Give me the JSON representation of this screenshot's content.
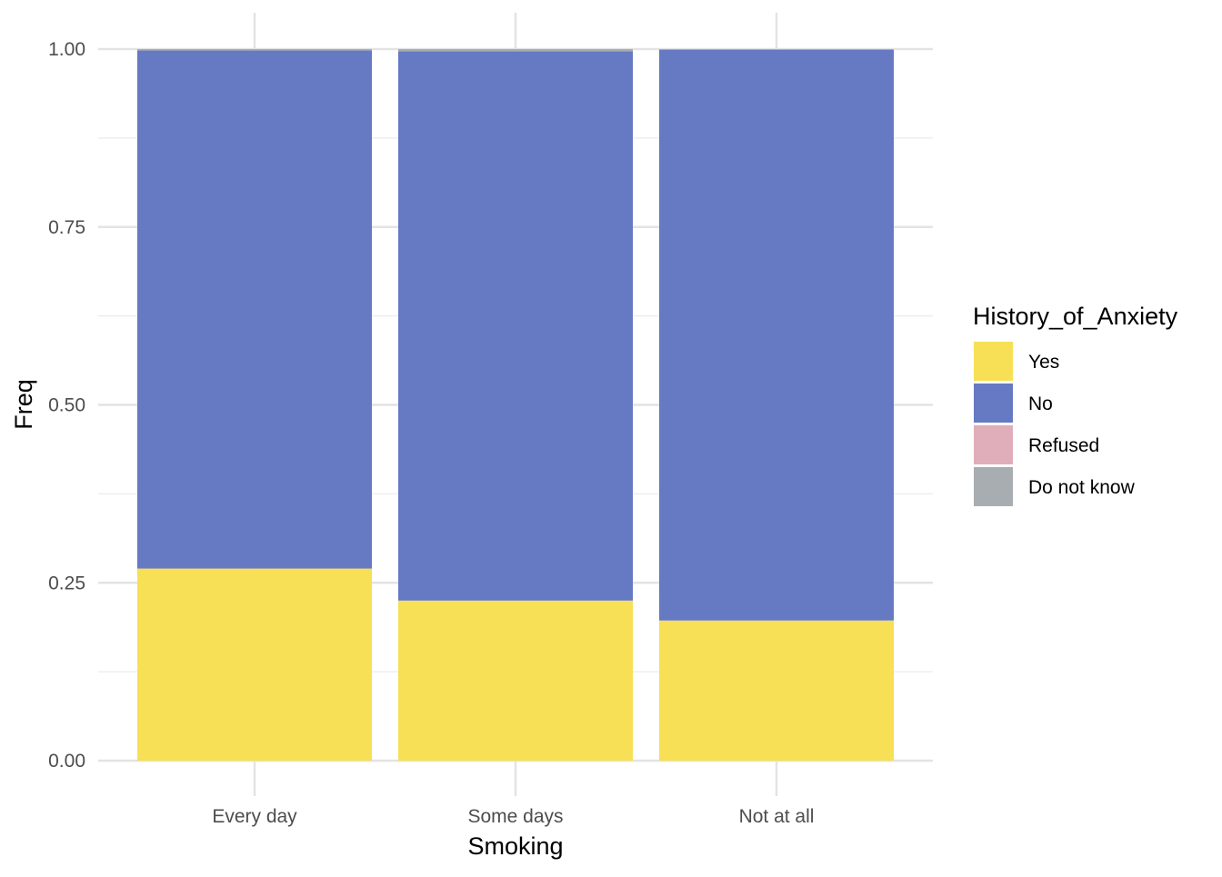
{
  "chart_data": {
    "type": "bar",
    "stacked": true,
    "xlabel": "Smoking",
    "ylabel": "Freq",
    "ylim": [
      0,
      1
    ],
    "yticks": [
      "0.00",
      "0.25",
      "0.50",
      "0.75",
      "1.00"
    ],
    "categories": [
      "Every day",
      "Some days",
      "Not at all"
    ],
    "series": [
      {
        "name": "Yes",
        "color": "#F7DF56",
        "values": [
          0.27,
          0.225,
          0.197
        ]
      },
      {
        "name": "No",
        "color": "#6679C3",
        "values": [
          0.728,
          0.772,
          0.802
        ]
      },
      {
        "name": "Refused",
        "color": "#E0AEBA",
        "values": [
          0.0,
          0.0,
          0.0
        ]
      },
      {
        "name": "Do not know",
        "color": "#A8ADB2",
        "values": [
          0.002,
          0.003,
          0.001
        ]
      }
    ],
    "legend": {
      "title": "History_of_Anxiety",
      "position": "right"
    },
    "grid": true
  }
}
